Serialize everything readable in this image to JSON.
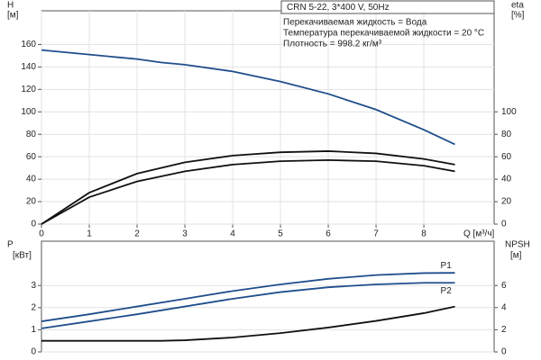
{
  "chart_data": [
    {
      "type": "line",
      "title": "CRN 5-22, 3*400 V, 50Hz",
      "annotations": [
        "Перекачиваемая жидкость = Вода",
        "Температура перекачиваемой жидкости = 20 °C",
        "Плотность = 998.2 кг/м³"
      ],
      "ylabel": "H",
      "yunit": "[м]",
      "y2label": "eta",
      "y2unit": "[%]",
      "xlabel": "Q [м³/ч]",
      "xlim": [
        0,
        9.47
      ],
      "xticks": [
        0,
        1,
        2,
        3,
        4,
        5,
        6,
        7,
        8
      ],
      "ylim": [
        0,
        190
      ],
      "yticks": [
        0,
        20,
        40,
        60,
        80,
        100,
        120,
        140,
        160
      ],
      "y2lim": [
        0,
        190
      ],
      "y2ticks": [
        0,
        20,
        40,
        60,
        80,
        100
      ],
      "grid": true,
      "series": [
        {
          "color": "#1f4e8c",
          "x": [
            0,
            1,
            2,
            2.5,
            3,
            4,
            5,
            6,
            7,
            8,
            8.65
          ],
          "values": [
            155,
            151,
            147,
            144,
            142,
            136,
            127,
            116,
            102,
            84,
            71
          ]
        },
        {
          "color": "#111111",
          "axis": "y2",
          "x": [
            0,
            1,
            2,
            3,
            4,
            5,
            6,
            7,
            8,
            8.65
          ],
          "values": [
            0,
            28,
            45,
            55,
            61,
            64,
            65,
            63,
            58,
            53
          ]
        },
        {
          "color": "#111111",
          "axis": "y2",
          "x": [
            0,
            1,
            2,
            3,
            4,
            5,
            6,
            7,
            8,
            8.65
          ],
          "values": [
            0,
            24,
            38,
            47,
            53,
            56,
            57,
            56,
            52,
            47
          ]
        }
      ]
    },
    {
      "type": "line",
      "ylabel": "P",
      "yunit": "[кВт]",
      "y2label": "NPSH",
      "y2unit": "[м]",
      "xlim": [
        0,
        9.47
      ],
      "ylim": [
        0,
        5
      ],
      "yticks": [
        0,
        1,
        2,
        3
      ],
      "y2lim": [
        0,
        10
      ],
      "y2ticks": [
        0,
        2,
        4,
        6
      ],
      "grid": true,
      "series": [
        {
          "name": "P1",
          "color": "#1f4e8c",
          "x": [
            0,
            1,
            2,
            3,
            4,
            5,
            6,
            7,
            8,
            8.65
          ],
          "values": [
            1.38,
            1.7,
            2.05,
            2.4,
            2.75,
            3.05,
            3.3,
            3.47,
            3.56,
            3.57
          ]
        },
        {
          "name": "P2",
          "color": "#1f4e8c",
          "x": [
            0,
            1,
            2,
            3,
            4,
            5,
            6,
            7,
            8,
            8.65
          ],
          "values": [
            1.06,
            1.38,
            1.7,
            2.05,
            2.4,
            2.7,
            2.92,
            3.05,
            3.12,
            3.12
          ]
        },
        {
          "color": "#111111",
          "axis": "y2",
          "x": [
            0,
            2.5,
            3,
            4,
            5,
            6,
            7,
            8,
            8.65
          ],
          "values": [
            1,
            1,
            1.05,
            1.3,
            1.7,
            2.2,
            2.8,
            3.5,
            4.1
          ]
        }
      ]
    }
  ]
}
